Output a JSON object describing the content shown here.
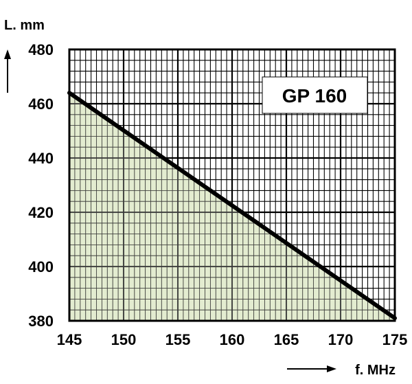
{
  "chart_data": {
    "type": "area",
    "title": "GP 160",
    "xlabel": "f. MHz",
    "ylabel": "L. mm",
    "xlim": [
      145,
      175
    ],
    "ylim": [
      380,
      480
    ],
    "x_ticks": [
      "145",
      "150",
      "155",
      "160",
      "165",
      "170",
      "175"
    ],
    "y_ticks": [
      "380",
      "400",
      "420",
      "440",
      "460",
      "480"
    ],
    "series": [
      {
        "x": [
          145,
          175
        ],
        "values": [
          464,
          381
        ]
      }
    ],
    "grid": true,
    "fill_color": "#dde8c6",
    "line_color": "#000000"
  }
}
